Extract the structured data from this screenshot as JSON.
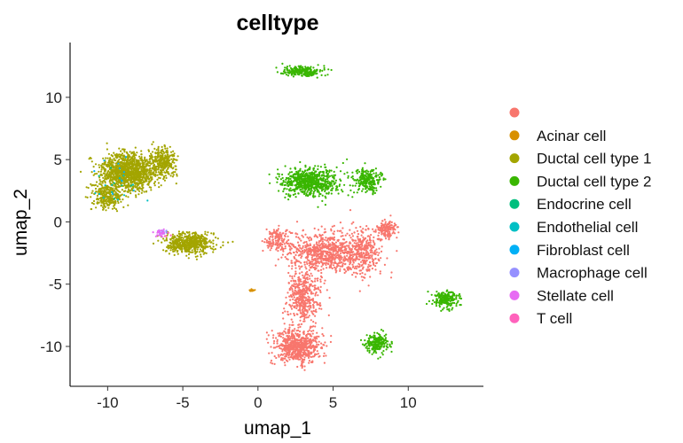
{
  "chart_data": {
    "type": "scatter",
    "title": "celltype",
    "xlabel": "umap_1",
    "ylabel": "umap_2",
    "xlim": [
      -12.5,
      15
    ],
    "ylim": [
      -13.2,
      14.4
    ],
    "x_ticks": [
      -10,
      -5,
      0,
      5,
      10
    ],
    "y_ticks": [
      10,
      5,
      0,
      -5,
      -10
    ],
    "x_tick_labels": [
      "-10",
      "-5",
      "0",
      "5",
      "10"
    ],
    "y_tick_labels": [
      "10",
      "5",
      "0",
      "-5",
      "-10"
    ],
    "grid": false,
    "legend_position": "right",
    "series": [
      {
        "name": "",
        "color": "#F8766D",
        "clusters": [
          {
            "cx": 2.6,
            "cy": -10.0,
            "sx": 1.4,
            "sy": 1.2,
            "n": 650
          },
          {
            "cx": 3.0,
            "cy": -6.0,
            "sx": 1.0,
            "sy": 2.0,
            "n": 450
          },
          {
            "cx": 4.5,
            "cy": -2.5,
            "sx": 2.2,
            "sy": 1.4,
            "n": 700
          },
          {
            "cx": 7.0,
            "cy": -2.5,
            "sx": 1.3,
            "sy": 1.8,
            "n": 350
          },
          {
            "cx": 8.6,
            "cy": -0.6,
            "sx": 0.6,
            "sy": 0.6,
            "n": 140
          },
          {
            "cx": 1.3,
            "cy": -1.5,
            "sx": 0.8,
            "sy": 0.9,
            "n": 150
          }
        ]
      },
      {
        "name": "Acinar cell",
        "color": "#D89000",
        "clusters": [
          {
            "cx": -0.4,
            "cy": -5.5,
            "sx": 0.2,
            "sy": 0.12,
            "n": 12
          }
        ]
      },
      {
        "name": "Ductal cell type 1",
        "color": "#A3A500",
        "clusters": [
          {
            "cx": -8.6,
            "cy": 4.0,
            "sx": 1.7,
            "sy": 1.3,
            "n": 1200
          },
          {
            "cx": -6.3,
            "cy": 4.8,
            "sx": 0.8,
            "sy": 1.0,
            "n": 300
          },
          {
            "cx": -10.0,
            "cy": 2.0,
            "sx": 0.9,
            "sy": 0.9,
            "n": 250
          },
          {
            "cx": -4.6,
            "cy": -1.7,
            "sx": 1.4,
            "sy": 0.75,
            "n": 550
          }
        ]
      },
      {
        "name": "Ductal cell type 2",
        "color": "#39B600",
        "clusters": [
          {
            "cx": 3.0,
            "cy": 12.1,
            "sx": 1.1,
            "sy": 0.4,
            "n": 220
          },
          {
            "cx": 3.5,
            "cy": 3.2,
            "sx": 1.7,
            "sy": 1.0,
            "n": 700
          },
          {
            "cx": 7.3,
            "cy": 3.3,
            "sx": 0.8,
            "sy": 0.9,
            "n": 250
          },
          {
            "cx": 12.5,
            "cy": -6.2,
            "sx": 0.7,
            "sy": 0.6,
            "n": 220
          },
          {
            "cx": 7.9,
            "cy": -9.7,
            "sx": 0.7,
            "sy": 0.8,
            "n": 200
          }
        ]
      },
      {
        "name": "Endocrine cell",
        "color": "#00BF7D",
        "clusters": [
          {
            "cx": -9.5,
            "cy": 3.0,
            "sx": 1.3,
            "sy": 1.5,
            "n": 6
          }
        ]
      },
      {
        "name": "Endothelial cell",
        "color": "#00BFC4",
        "clusters": [
          {
            "cx": -9.5,
            "cy": 2.5,
            "sx": 1.3,
            "sy": 1.5,
            "n": 12
          }
        ]
      },
      {
        "name": "Fibroblast cell",
        "color": "#00B0F6",
        "clusters": [
          {
            "cx": -9.0,
            "cy": 3.5,
            "sx": 1.2,
            "sy": 1.3,
            "n": 10
          }
        ]
      },
      {
        "name": "Macrophage cell",
        "color": "#9590FF",
        "clusters": [
          {
            "cx": -6.3,
            "cy": -0.8,
            "sx": 0.3,
            "sy": 0.3,
            "n": 14
          }
        ]
      },
      {
        "name": "Stellate cell",
        "color": "#E76BF3",
        "clusters": [
          {
            "cx": -6.5,
            "cy": -0.9,
            "sx": 0.35,
            "sy": 0.3,
            "n": 22
          }
        ]
      },
      {
        "name": "T cell",
        "color": "#FF62BC",
        "clusters": [
          {
            "cx": -6.0,
            "cy": -1.0,
            "sx": 0.3,
            "sy": 0.3,
            "n": 4
          }
        ]
      }
    ]
  }
}
